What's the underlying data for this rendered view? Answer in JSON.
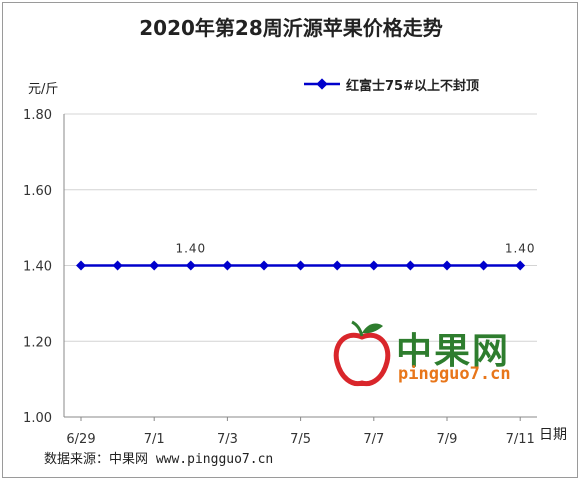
{
  "chart_data": {
    "type": "line",
    "title": "2020年第28周沂源苹果价格走势",
    "ylabel": "元/斤",
    "xlabel": "日期",
    "ylim": [
      1.0,
      1.8
    ],
    "yticks": [
      "1.00",
      "1.20",
      "1.40",
      "1.60",
      "1.80"
    ],
    "xticks": [
      "6/29",
      "7/1",
      "7/3",
      "7/5",
      "7/7",
      "7/9",
      "7/11"
    ],
    "grid": true,
    "legend": "top-right",
    "series": [
      {
        "name": "红富士75#以上不封顶",
        "color": "#0000cc",
        "values": [
          1.4,
          1.4,
          1.4,
          1.4,
          1.4,
          1.4,
          1.4,
          1.4,
          1.4,
          1.4,
          1.4,
          1.4,
          1.4
        ]
      }
    ],
    "data_labels": [
      {
        "point": 3,
        "text": "1.40"
      },
      {
        "point": 12,
        "text": "1.40"
      }
    ]
  },
  "source": "数据来源：中果网 www.pingguo7.cn",
  "watermark": {
    "brand": "中果网",
    "url": "pingguo7.cn"
  }
}
